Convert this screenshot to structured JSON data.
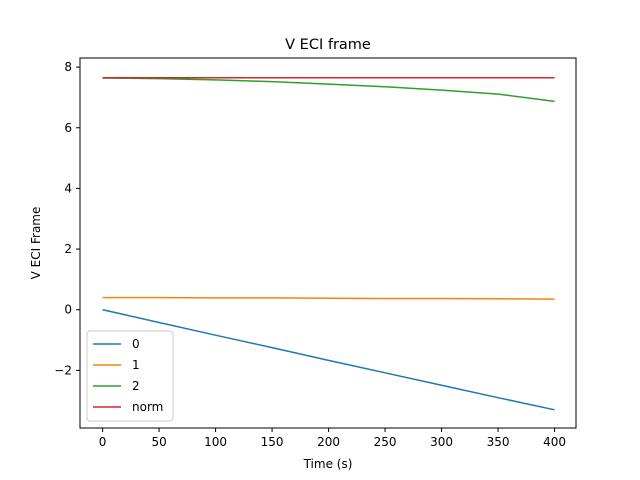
{
  "chart_data": {
    "type": "line",
    "title": "V ECI frame",
    "xlabel": "Time (s)",
    "ylabel": "V ECI Frame",
    "xlim": [
      -20,
      419
    ],
    "ylim": [
      -3.9,
      8.3
    ],
    "xticks": [
      0,
      50,
      100,
      150,
      200,
      250,
      300,
      350,
      400
    ],
    "yticks": [
      -2,
      0,
      2,
      4,
      6,
      8
    ],
    "ytick_labels": [
      "−2",
      "0",
      "2",
      "4",
      "6",
      "8"
    ],
    "grid": false,
    "legend_position": "lower-left",
    "x": [
      0,
      50,
      100,
      150,
      200,
      250,
      300,
      350,
      400
    ],
    "series": [
      {
        "name": "0",
        "color": "#1f77b4",
        "values": [
          0.0,
          -0.42,
          -0.84,
          -1.25,
          -1.67,
          -2.08,
          -2.49,
          -2.9,
          -3.3
        ]
      },
      {
        "name": "1",
        "color": "#ff7f0e",
        "values": [
          0.4,
          0.4,
          0.39,
          0.39,
          0.38,
          0.37,
          0.37,
          0.36,
          0.35
        ]
      },
      {
        "name": "2",
        "color": "#2ca02c",
        "values": [
          7.64,
          7.62,
          7.58,
          7.52,
          7.44,
          7.35,
          7.24,
          7.11,
          6.87
        ]
      },
      {
        "name": "norm",
        "color": "#d62728",
        "values": [
          7.65,
          7.65,
          7.65,
          7.65,
          7.65,
          7.65,
          7.65,
          7.65,
          7.65
        ]
      }
    ]
  }
}
